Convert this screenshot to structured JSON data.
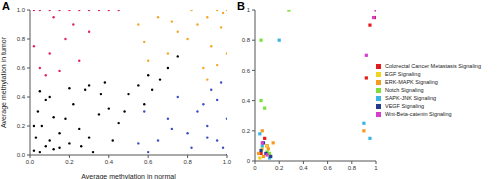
{
  "chart_data": [
    {
      "type": "scatter",
      "title": "A",
      "x_label": "Average methylation in normal",
      "y_label": "Average methylation in tumor",
      "xlim": [
        0,
        1
      ],
      "ylim": [
        0,
        1
      ],
      "xticks": [
        {
          "value": 0,
          "label": "0.0"
        },
        0.2,
        0.4,
        0.6,
        0.8,
        {
          "value": 1,
          "label": "1.0"
        }
      ],
      "yticks": [
        {
          "value": 0,
          "label": "0.0"
        },
        0.2,
        0.4,
        0.6,
        0.8,
        {
          "value": 1,
          "label": "1.0"
        }
      ],
      "marker": "dot",
      "series": [
        {
          "color": "#000000",
          "x": [
            0.02,
            0.05,
            0.08,
            0.1,
            0.03,
            0.12,
            0.15,
            0.06,
            0.2,
            0.25,
            0.04,
            0.18,
            0.3,
            0.22,
            0.35,
            0.1,
            0.4,
            0.28,
            0.45,
            0.5,
            0.38,
            0.55,
            0.6,
            0.15,
            0.08,
            0.32,
            0.42,
            0.48,
            0.62,
            0.7,
            0.12,
            0.02,
            0.05,
            0.26,
            0.36,
            0.58,
            0.66,
            0.75,
            0.2,
            0.3
          ],
          "y": [
            0.03,
            0.02,
            0.06,
            0.1,
            0.12,
            0.04,
            0.15,
            0.2,
            0.08,
            0.18,
            0.3,
            0.25,
            0.12,
            0.35,
            0.28,
            0.4,
            0.32,
            0.45,
            0.22,
            0.42,
            0.5,
            0.48,
            0.55,
            0.05,
            0.38,
            0.02,
            0.1,
            0.3,
            0.45,
            0.6,
            0.26,
            0.2,
            0.44,
            0.06,
            0.42,
            0.35,
            0.52,
            0.68,
            0.46,
            0.48
          ]
        },
        {
          "color": "#e0245e",
          "x": [
            0.02,
            0.05,
            0.1,
            0.15,
            0.2,
            0.25,
            0.3,
            0.35,
            0.4,
            0.45,
            0.05,
            0.1,
            0.18,
            0.22,
            0.08,
            0.3,
            0.12,
            0.02,
            0.25,
            0.15
          ],
          "y": [
            1,
            1,
            1,
            1,
            1,
            1,
            1,
            1,
            1,
            1,
            0.6,
            0.7,
            0.8,
            0.9,
            0.55,
            0.85,
            0.95,
            0.75,
            0.65,
            0.58
          ]
        },
        {
          "color": "#f5a623",
          "x": [
            1,
            0.98,
            0.95,
            0.9,
            0.85,
            0.8,
            0.7,
            0.6,
            0.55,
            0.75,
            0.92,
            0.88,
            0.65,
            0.97,
            1,
            0.82,
            0.72,
            0.95,
            0.58,
            0.9
          ],
          "y": [
            1,
            0.98,
            1,
            0.95,
            0.9,
            0.8,
            0.7,
            0.65,
            0.9,
            0.85,
            0.75,
            0.6,
            0.95,
            0.88,
            0.7,
            1,
            0.92,
            0.62,
            0.78,
            0.52
          ]
        },
        {
          "color": "#3a4fc4",
          "x": [
            1,
            0.98,
            0.95,
            0.9,
            0.85,
            0.8,
            0.7,
            0.6,
            0.55,
            0.75,
            0.92,
            0.88,
            0.65,
            0.97,
            1,
            0.82,
            0.72,
            0.95,
            0.58,
            0.9
          ],
          "y": [
            0,
            0.05,
            0.1,
            0.2,
            0.3,
            0.15,
            0.25,
            0.02,
            0.08,
            0.4,
            0.45,
            0.35,
            0.1,
            0.5,
            0.25,
            0.05,
            0.18,
            0.38,
            0.3,
            0.12
          ]
        }
      ]
    },
    {
      "type": "scatter",
      "title": "B",
      "xlim": [
        0,
        1
      ],
      "ylim": [
        0,
        1
      ],
      "xticks": [
        0,
        0.2,
        0.4,
        0.6,
        0.8,
        1
      ],
      "yticks": [
        0,
        0.2,
        0.4,
        0.6,
        0.8,
        1
      ],
      "legend": "right",
      "marker": "square",
      "series": [
        {
          "name": "Colorectal Cancer Metastasis Signaling",
          "color": "#e41a1c",
          "x": [
            0.05,
            0.1,
            0.08,
            0.95,
            1,
            0.92
          ],
          "y": [
            0.05,
            0.1,
            0.15,
            0.9,
            0.95,
            0.55
          ]
        },
        {
          "name": "EGF Signaling",
          "color": "#f2d41f",
          "x": [
            0.04,
            0.06,
            0.1,
            0.12
          ],
          "y": [
            0.02,
            0.08,
            0.1,
            0.04
          ]
        },
        {
          "name": "ERK-MAPK Signaling",
          "color": "#f59b1e",
          "x": [
            0.03,
            0.07,
            0.11,
            0.06,
            0.9,
            0.15
          ],
          "y": [
            0.05,
            0.03,
            0.08,
            0.2,
            0.2,
            0.12
          ]
        },
        {
          "name": "Notch Signaling",
          "color": "#7ddf3a",
          "x": [
            0.05,
            0.05,
            0.28,
            0.08,
            0.1,
            0.12
          ],
          "y": [
            0.4,
            0.8,
            1,
            0.35,
            0.06,
            0.05
          ]
        },
        {
          "name": "SAPK-JNK Signaling",
          "color": "#3ab4e6",
          "x": [
            0.2,
            0.06,
            0.9,
            0.95,
            0.12,
            0.04
          ],
          "y": [
            0.8,
            0.1,
            0.25,
            0.15,
            0.02,
            0.18
          ]
        },
        {
          "name": "VEGF Signaling",
          "color": "#223a8f",
          "x": [
            0.05,
            0.09,
            0.07,
            0.13
          ],
          "y": [
            0.07,
            0.05,
            0.12,
            0.03
          ]
        },
        {
          "name": "Wnt-Beta-catenin Signaling",
          "color": "#d43fd0",
          "x": [
            0.06,
            1,
            0.98,
            0.1,
            0.92
          ],
          "y": [
            0.12,
            1,
            0.95,
            0.04,
            0.7
          ]
        }
      ]
    }
  ]
}
